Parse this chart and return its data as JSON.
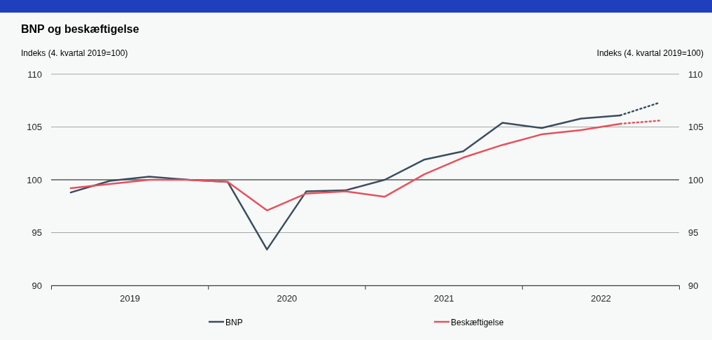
{
  "chart_data": {
    "type": "line",
    "title": "BNP og beskæftigelse",
    "ylabel": "Indeks (4. kvartal 2019=100)",
    "y2label": "Indeks (4. kvartal 2019=100)",
    "x": [
      2019.125,
      2019.375,
      2019.625,
      2019.875,
      2020.125,
      2020.375,
      2020.625,
      2020.875,
      2021.125,
      2021.375,
      2021.625,
      2021.875,
      2022.125,
      2022.375,
      2022.625,
      2022.875
    ],
    "xlim": [
      2019,
      2023
    ],
    "xticks": [
      {
        "value": 2019,
        "label": null
      },
      {
        "value": 2019.5,
        "label": "2019"
      },
      {
        "value": 2020,
        "label": null
      },
      {
        "value": 2020.5,
        "label": "2020"
      },
      {
        "value": 2021,
        "label": null
      },
      {
        "value": 2021.5,
        "label": "2021"
      },
      {
        "value": 2022,
        "label": null
      },
      {
        "value": 2022.5,
        "label": "2022"
      },
      {
        "value": 2023,
        "label": null
      }
    ],
    "ylim": [
      90,
      110
    ],
    "yticks": [
      90,
      95,
      100,
      105,
      110
    ],
    "y2lim": [
      90,
      110
    ],
    "y2ticks": [
      90,
      95,
      100,
      105,
      110
    ],
    "series": [
      {
        "name": "BNP",
        "color": "#3b4d5e",
        "line_style": "solid",
        "values": [
          98.8,
          99.9,
          100.3,
          100.0,
          99.8,
          93.4,
          98.9,
          99.0,
          100.0,
          101.9,
          102.7,
          105.4,
          104.9,
          105.8,
          106.1,
          null
        ]
      },
      {
        "name": "Beskæftigelse",
        "color": "#e8505b",
        "line_style": "solid",
        "values": [
          99.2,
          99.6,
          100.0,
          100.0,
          99.8,
          97.1,
          98.7,
          98.9,
          98.4,
          100.5,
          102.1,
          103.3,
          104.3,
          104.7,
          105.3,
          null
        ]
      },
      {
        "color": "#3b4d5e",
        "line_style": "dotted",
        "values": [
          null,
          null,
          null,
          null,
          null,
          null,
          null,
          null,
          null,
          null,
          null,
          null,
          null,
          null,
          106.1,
          107.3
        ]
      },
      {
        "color": "#e8505b",
        "line_style": "dotted",
        "values": [
          null,
          null,
          null,
          null,
          null,
          null,
          null,
          null,
          null,
          null,
          null,
          null,
          null,
          null,
          105.3,
          105.6
        ]
      }
    ],
    "ref_lines": [
      {
        "axis": "y",
        "value": 100,
        "color": "#333333"
      }
    ],
    "grid": "y",
    "legend": "bottom",
    "marker": "none"
  }
}
